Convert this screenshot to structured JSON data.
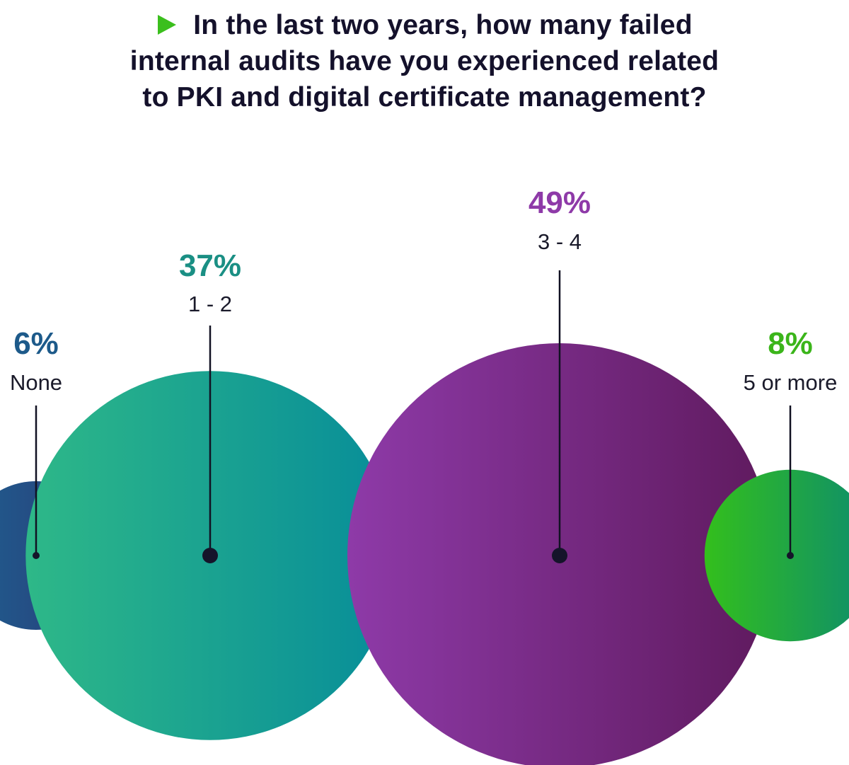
{
  "title": "In the last two years, how many failed internal audits have you experienced related to PKI and digital certificate management?",
  "title_lines": [
    "In the last two years, how many failed",
    "internal audits have you experienced related",
    "to PKI and digital certificate management?"
  ],
  "title_marker_color": "#3bbf1d",
  "chart_data": {
    "type": "bubble",
    "title": "In the last two years, how many failed internal audits have you experienced related to PKI and digital certificate management?",
    "unit": "%",
    "categories": [
      "None",
      "1 - 2",
      "3 - 4",
      "5 or more"
    ],
    "values": [
      6,
      37,
      49,
      8
    ],
    "value_labels": [
      "6%",
      "37%",
      "49%",
      "8%"
    ],
    "colors": [
      {
        "label": "#1d5a8a",
        "from": "#1f5f8f",
        "to": "#2a3a78"
      },
      {
        "label": "#1a8f84",
        "from": "#2eb888",
        "to": "#078d99"
      },
      {
        "label": "#8e3aa8",
        "from": "#8e3aa8",
        "to": "#5f1a5e"
      },
      {
        "label": "#3bb51a",
        "from": "#33bf1c",
        "to": "#0d8c6e"
      }
    ]
  }
}
